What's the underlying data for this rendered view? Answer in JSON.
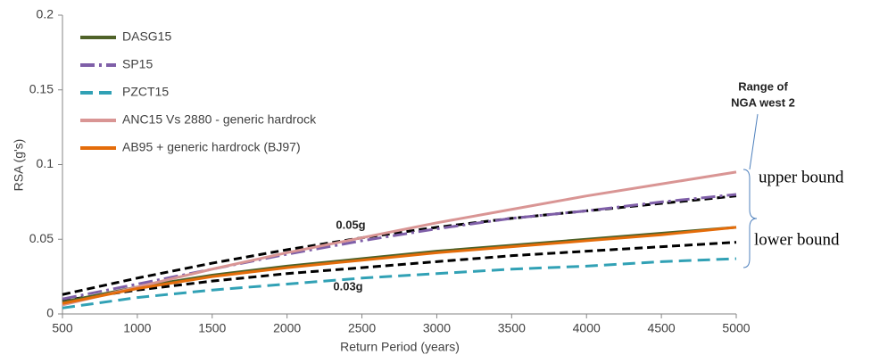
{
  "chart_data": {
    "type": "line",
    "x_label": "Return Period (years)",
    "y_label": "RSA (g's)",
    "x": [
      500,
      1000,
      1500,
      2000,
      2500,
      3000,
      3500,
      4000,
      4500,
      5000
    ],
    "xlim": [
      500,
      5000
    ],
    "xticks": [
      500,
      1000,
      1500,
      2000,
      2500,
      3000,
      3500,
      4000,
      4500,
      5000
    ],
    "ylim": [
      0,
      0.2
    ],
    "yticks": [
      0,
      0.05,
      0.1,
      0.15,
      0.2
    ],
    "grid": false,
    "legend": "upper left",
    "series": [
      {
        "name": "DASG15",
        "color": "#4f6228",
        "style": "solid",
        "values": [
          0.008,
          0.018,
          0.026,
          0.032,
          0.037,
          0.042,
          0.046,
          0.05,
          0.054,
          0.058
        ]
      },
      {
        "name": "SP15",
        "color": "#7f5fa8",
        "style": "dash-dot",
        "values": [
          0.01,
          0.02,
          0.03,
          0.04,
          0.049,
          0.057,
          0.064,
          0.069,
          0.075,
          0.08
        ]
      },
      {
        "name": "PZCT15",
        "color": "#31a1b5",
        "style": "dash",
        "values": [
          0.004,
          0.011,
          0.016,
          0.02,
          0.024,
          0.027,
          0.03,
          0.032,
          0.035,
          0.037
        ]
      },
      {
        "name": "ANC15 Vs 2880 - generic hardrock",
        "color": "#d99594",
        "style": "solid",
        "values": [
          0.006,
          0.018,
          0.03,
          0.041,
          0.051,
          0.061,
          0.07,
          0.079,
          0.087,
          0.095
        ]
      },
      {
        "name": "AB95 + generic hardrock (BJ97)",
        "color": "#e46c0a",
        "style": "solid",
        "values": [
          0.007,
          0.017,
          0.025,
          0.031,
          0.036,
          0.041,
          0.045,
          0.049,
          0.053,
          0.058
        ]
      }
    ],
    "bounds": [
      {
        "label": "0.05g",
        "color": "#000000",
        "values": [
          0.013,
          0.024,
          0.034,
          0.043,
          0.051,
          0.058,
          0.064,
          0.069,
          0.074,
          0.079
        ]
      },
      {
        "label": "0.03g",
        "color": "#000000",
        "values": [
          0.009,
          0.016,
          0.022,
          0.027,
          0.031,
          0.035,
          0.039,
          0.042,
          0.045,
          0.048
        ]
      }
    ],
    "annotations": {
      "range": [
        "Range of",
        "NGA west 2"
      ],
      "upper": "upper bound",
      "lower": "lower bound"
    }
  }
}
